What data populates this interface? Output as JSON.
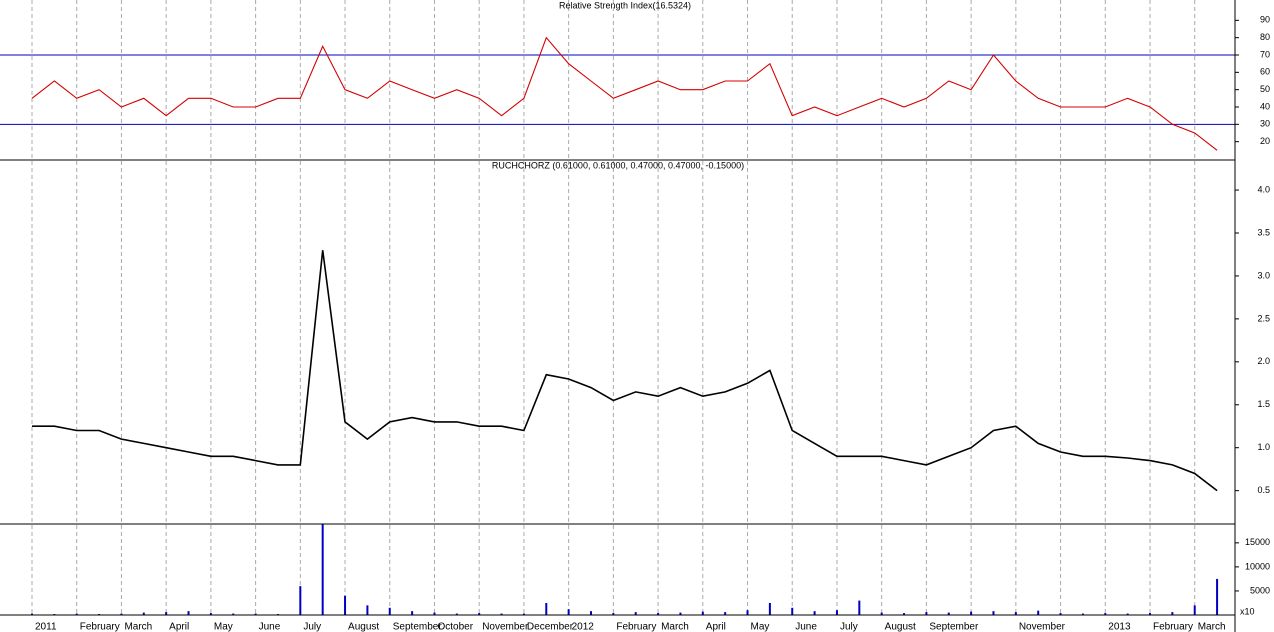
{
  "chart_data": [
    {
      "type": "line",
      "title": "Relative Strength Index(16.5324)",
      "color": "#d40000",
      "values": [
        45,
        55,
        45,
        50,
        40,
        45,
        35,
        45,
        45,
        40,
        40,
        45,
        45,
        75,
        50,
        45,
        55,
        50,
        45,
        50,
        45,
        35,
        45,
        80,
        65,
        55,
        45,
        50,
        55,
        50,
        50,
        55,
        55,
        65,
        35,
        40,
        35,
        40,
        45,
        40,
        45,
        55,
        50,
        70,
        55,
        45,
        40,
        40,
        40,
        45,
        40,
        30,
        25,
        15
      ],
      "ylim": [
        10,
        100
      ],
      "yticks": [
        20,
        30,
        40,
        50,
        60,
        70,
        80,
        90
      ],
      "reference_lines": [
        70,
        30
      ],
      "reference_color": "#0000c0"
    },
    {
      "type": "line",
      "title": "RUCHCHORZ (0.61000, 0.61000, 0.47000, 0.47000, -0.15000)",
      "color": "#000000",
      "values": [
        1.25,
        1.25,
        1.2,
        1.2,
        1.1,
        1.05,
        1.0,
        0.95,
        0.9,
        0.9,
        0.85,
        0.8,
        0.8,
        3.3,
        1.3,
        1.1,
        1.3,
        1.35,
        1.3,
        1.3,
        1.25,
        1.25,
        1.2,
        1.85,
        1.8,
        1.7,
        1.55,
        1.65,
        1.6,
        1.7,
        1.6,
        1.65,
        1.75,
        1.9,
        1.2,
        1.05,
        0.9,
        0.9,
        0.9,
        0.85,
        0.8,
        0.9,
        1.0,
        1.2,
        1.25,
        1.05,
        0.95,
        0.9,
        0.9,
        0.88,
        0.85,
        0.8,
        0.7,
        0.5
      ],
      "ylim": [
        0.1,
        4.35
      ],
      "yticks": [
        0.5,
        {
          "value": 1,
          "label": "1.0"
        },
        1.5,
        {
          "value": 2,
          "label": "2.0"
        },
        2.5,
        {
          "value": 3,
          "label": "3.0"
        },
        3.5,
        {
          "value": 4,
          "label": "4.0"
        }
      ]
    },
    {
      "type": "bar",
      "color": "#0000c0",
      "multiplier_label": "x10",
      "categories": [
        "2011",
        null,
        "February",
        null,
        "March",
        null,
        "April",
        null,
        "May",
        null,
        "June",
        null,
        "July",
        null,
        "August",
        null,
        "September",
        null,
        "October",
        null,
        "November",
        null,
        "December",
        null,
        "2012",
        null,
        "February",
        null,
        "March",
        null,
        "April",
        null,
        "May",
        null,
        "June",
        null,
        "July",
        null,
        "August",
        null,
        "September",
        null,
        null,
        null,
        "November",
        null,
        null,
        null,
        "2013",
        null,
        "February",
        null,
        "March",
        null
      ],
      "values": [
        300,
        200,
        300,
        200,
        300,
        500,
        600,
        800,
        400,
        300,
        300,
        200,
        6000,
        19000,
        4000,
        2000,
        1500,
        800,
        500,
        300,
        400,
        300,
        300,
        2500,
        1200,
        800,
        400,
        600,
        400,
        500,
        700,
        600,
        1000,
        2500,
        1500,
        800,
        1000,
        3000,
        500,
        400,
        600,
        500,
        700,
        800,
        600,
        900,
        400,
        300,
        400,
        300,
        400,
        600,
        2000,
        7500
      ],
      "ylim": [
        0,
        18500
      ],
      "yticks": [
        5000,
        10000,
        15000
      ]
    }
  ]
}
